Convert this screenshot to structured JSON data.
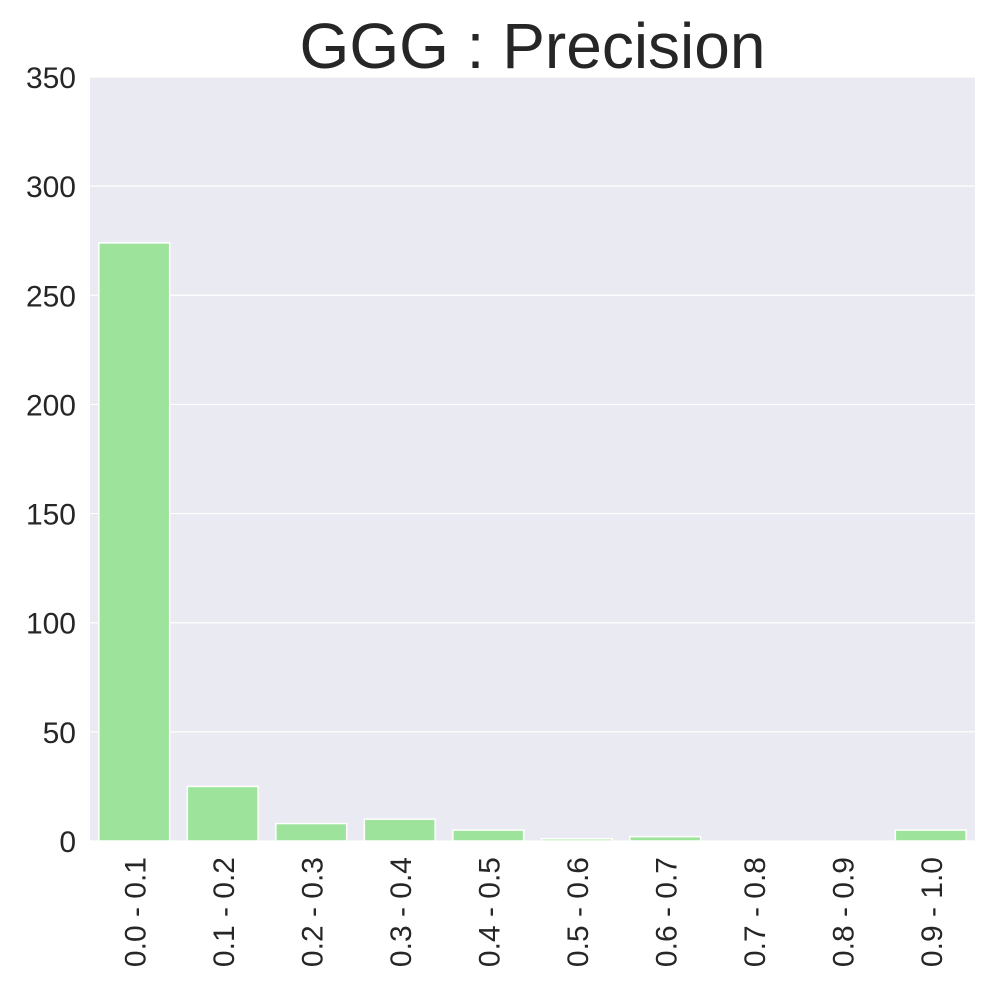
{
  "chart_data": {
    "type": "bar",
    "title": "GGG : Precision",
    "xlabel": "",
    "ylabel": "",
    "categories": [
      "0.0 - 0.1",
      "0.1 - 0.2",
      "0.2 - 0.3",
      "0.3 - 0.4",
      "0.4 - 0.5",
      "0.5 - 0.6",
      "0.6 - 0.7",
      "0.7 - 0.8",
      "0.8 - 0.9",
      "0.9 - 1.0"
    ],
    "values": [
      274,
      25,
      8,
      10,
      5,
      1,
      2,
      0,
      0,
      5
    ],
    "ylim": [
      0,
      350
    ],
    "yticks": [
      0,
      50,
      100,
      150,
      200,
      250,
      300,
      350
    ],
    "grid": true,
    "legend": "none",
    "colors": {
      "bar": "#9de39b",
      "plot_background": "#eaeaf2",
      "grid": "#ffffff",
      "text": "#262626"
    }
  }
}
